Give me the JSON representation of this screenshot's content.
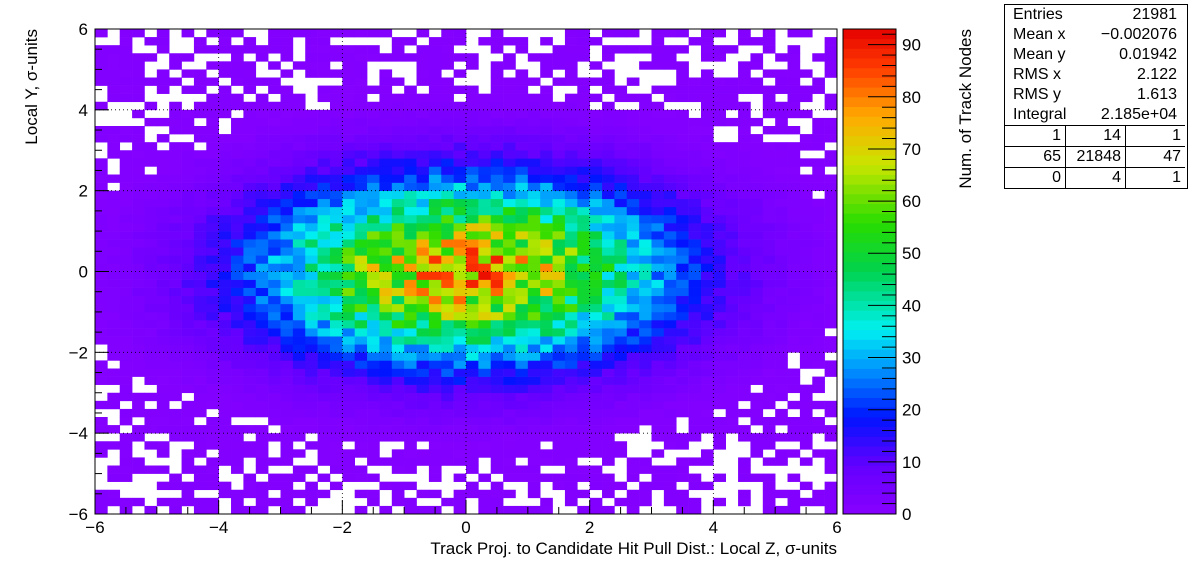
{
  "chart_data": {
    "type": "heatmap",
    "title": "",
    "xlabel": "Track Proj. to Candidate Hit Pull Dist.: Local Z, σ-units",
    "ylabel": "Local Y, σ-units",
    "xlim": [
      -6,
      6
    ],
    "ylim": [
      -6,
      6
    ],
    "x_ticks": [
      "−6",
      "−4",
      "−2",
      "0",
      "2",
      "4",
      "6"
    ],
    "y_ticks": [
      "−6",
      "−4",
      "−2",
      "0",
      "2",
      "4",
      "6"
    ],
    "grid": true,
    "bins": {
      "nx": 60,
      "ny": 60
    },
    "distribution": {
      "mean_x": -0.002076,
      "mean_y": 0.01942,
      "rms_x": 2.122,
      "rms_y": 1.613,
      "peak_count": 92
    },
    "colorbar": {
      "label": "Num. of Track Nodes",
      "range": [
        0,
        93
      ],
      "ticks": [
        "0",
        "10",
        "20",
        "30",
        "40",
        "50",
        "60",
        "70",
        "80",
        "90"
      ],
      "palette": "rainbow (purple → blue → cyan → green → yellow → red)"
    },
    "stats": {
      "rows": [
        {
          "label": "Entries",
          "value": "21981"
        },
        {
          "label": "Mean x",
          "value": "−0.002076"
        },
        {
          "label": "Mean y",
          "value": "0.01942"
        },
        {
          "label": "RMS x",
          "value": "2.122"
        },
        {
          "label": "RMS y",
          "value": "1.613"
        },
        {
          "label": "Integral",
          "value": "2.185e+04"
        }
      ],
      "overflow_grid": [
        [
          "1",
          "14",
          "1"
        ],
        [
          "65",
          "21848",
          "47"
        ],
        [
          "0",
          "4",
          "1"
        ]
      ]
    }
  }
}
